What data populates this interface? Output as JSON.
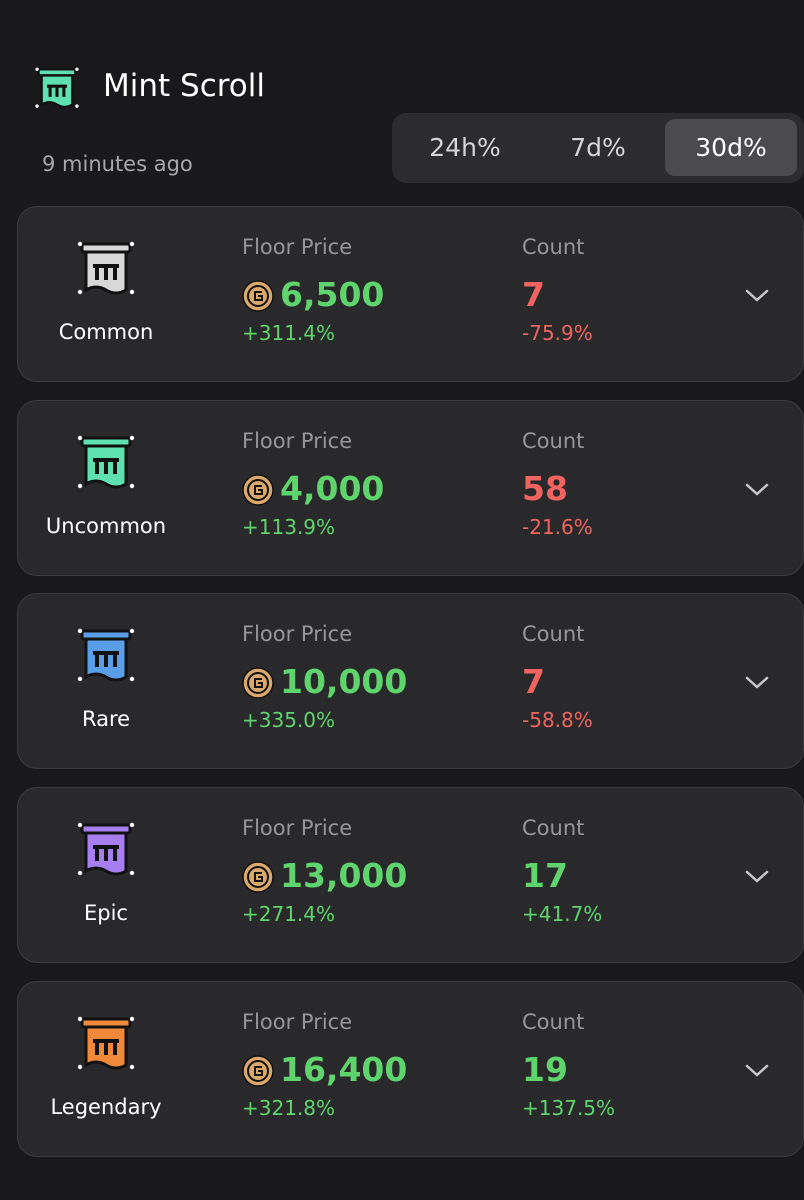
{
  "header": {
    "title": "Mint Scroll",
    "updated": "9 minutes ago",
    "icon_color": "#5fe0b0"
  },
  "tabs": {
    "labels": [
      "24h%",
      "7d%",
      "30d%"
    ],
    "active": 2
  },
  "items": [
    {
      "rarity": "Common",
      "icon_color": "#d8d8d8",
      "floor_label": "Floor Price",
      "floor": "6,500",
      "floor_change": "+311.4%",
      "count_label": "Count",
      "count": "7",
      "count_change": "-75.9%"
    },
    {
      "rarity": "Uncommon",
      "icon_color": "#5fe0b0",
      "floor_label": "Floor Price",
      "floor": "4,000",
      "floor_change": "+113.9%",
      "count_label": "Count",
      "count": "58",
      "count_change": "-21.6%"
    },
    {
      "rarity": "Rare",
      "icon_color": "#5b9ee8",
      "floor_label": "Floor Price",
      "floor": "10,000",
      "floor_change": "+335.0%",
      "count_label": "Count",
      "count": "7",
      "count_change": "-58.8%"
    },
    {
      "rarity": "Epic",
      "icon_color": "#a77ef0",
      "floor_label": "Floor Price",
      "floor": "13,000",
      "floor_change": "+271.4%",
      "count_label": "Count",
      "count": "17",
      "count_change": "+41.7%"
    },
    {
      "rarity": "Legendary",
      "icon_color": "#f08a3a",
      "floor_label": "Floor Price",
      "floor": "16,400",
      "floor_change": "+321.8%",
      "count_label": "Count",
      "count": "19",
      "count_change": "+137.5%"
    }
  ]
}
